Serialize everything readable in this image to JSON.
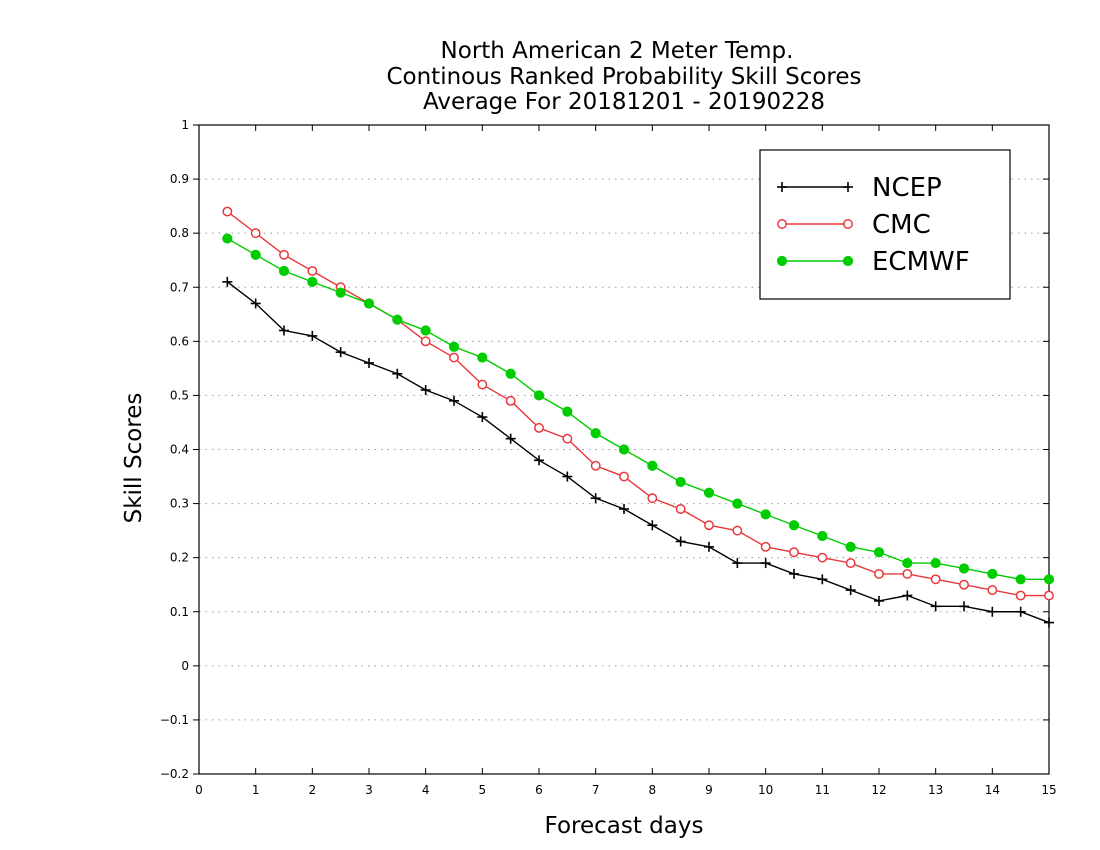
{
  "chart_data": {
    "type": "line",
    "title": [
      "North American 2 Meter Temp.",
      "Continous Ranked Probability Skill Scores",
      "Average For 20181201 - 20190228"
    ],
    "xlabel": "Forecast days",
    "ylabel": "Skill Scores",
    "xlim": [
      0,
      15
    ],
    "ylim": [
      -0.2,
      1
    ],
    "xticks": [
      0,
      1,
      2,
      3,
      4,
      5,
      6,
      7,
      8,
      9,
      10,
      11,
      12,
      13,
      14,
      15
    ],
    "yticks": [
      -0.2,
      -0.1,
      0,
      0.1,
      0.2,
      0.3,
      0.4,
      0.5,
      0.6,
      0.7,
      0.8,
      0.9,
      1
    ],
    "grid": "horizontal-dotted",
    "legend_position": "top-right",
    "x": [
      0.5,
      1,
      1.5,
      2,
      2.5,
      3,
      3.5,
      4,
      4.5,
      5,
      5.5,
      6,
      6.5,
      7,
      7.5,
      8,
      8.5,
      9,
      9.5,
      10,
      10.5,
      11,
      11.5,
      12,
      12.5,
      13,
      13.5,
      14,
      14.5,
      15
    ],
    "series": [
      {
        "name": "NCEP",
        "color": "#000000",
        "marker": "plus",
        "values": [
          0.71,
          0.67,
          0.62,
          0.61,
          0.58,
          0.56,
          0.54,
          0.51,
          0.49,
          0.46,
          0.42,
          0.38,
          0.35,
          0.31,
          0.29,
          0.26,
          0.23,
          0.22,
          0.19,
          0.19,
          0.17,
          0.16,
          0.14,
          0.12,
          0.13,
          0.11,
          0.11,
          0.1,
          0.1,
          0.08
        ]
      },
      {
        "name": "CMC",
        "color": "#e8383d",
        "marker": "open-circle",
        "values": [
          0.84,
          0.8,
          0.76,
          0.73,
          0.7,
          0.67,
          0.64,
          0.6,
          0.57,
          0.52,
          0.49,
          0.44,
          0.42,
          0.37,
          0.35,
          0.31,
          0.29,
          0.26,
          0.25,
          0.22,
          0.21,
          0.2,
          0.19,
          0.17,
          0.17,
          0.16,
          0.15,
          0.14,
          0.13,
          0.13
        ]
      },
      {
        "name": "ECMWF",
        "color": "#00cc00",
        "marker": "filled-circle",
        "values": [
          0.79,
          0.76,
          0.73,
          0.71,
          0.69,
          0.67,
          0.64,
          0.62,
          0.59,
          0.57,
          0.54,
          0.5,
          0.47,
          0.43,
          0.4,
          0.37,
          0.34,
          0.32,
          0.3,
          0.28,
          0.26,
          0.24,
          0.22,
          0.21,
          0.19,
          0.19,
          0.18,
          0.17,
          0.16,
          0.16
        ]
      }
    ]
  }
}
